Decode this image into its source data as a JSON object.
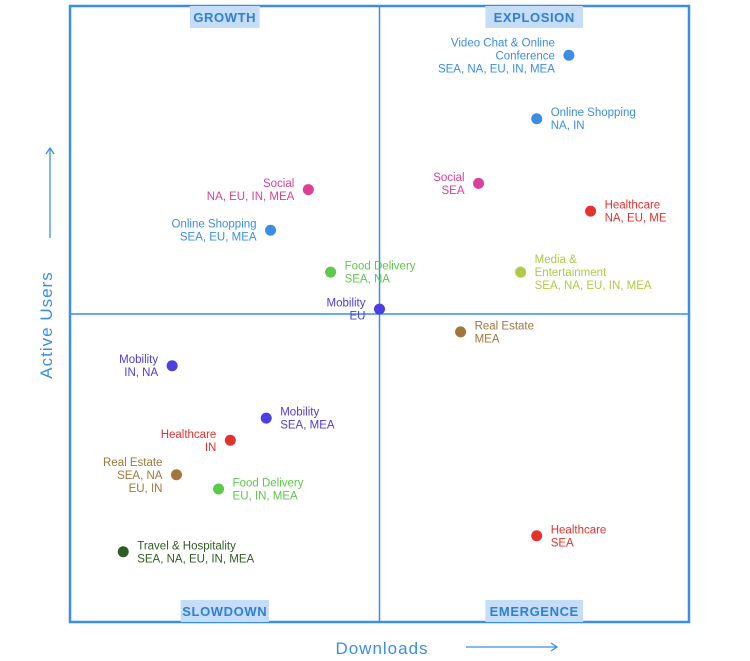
{
  "chart_data": {
    "type": "scatter",
    "title": "",
    "xlabel": "Downloads",
    "ylabel": "Active Users",
    "xlim": [
      0,
      100
    ],
    "ylim": [
      0,
      100
    ],
    "grid": false,
    "quadrants": {
      "top_left": "GROWTH",
      "top_right": "EXPLOSION",
      "bottom_left": "SLOWDOWN",
      "bottom_right": "EMERGENCE"
    },
    "categories": [
      {
        "name": "Video Chat & Online Conference",
        "color": "#3a8ee6"
      },
      {
        "name": "Online Shopping",
        "color": "#3a8ee6"
      },
      {
        "name": "Social",
        "color": "#dd3f96"
      },
      {
        "name": "Healthcare",
        "color": "#e5322e"
      },
      {
        "name": "Media & Entertainment",
        "color": "#aecb45"
      },
      {
        "name": "Food Delivery",
        "color": "#5dc84a"
      },
      {
        "name": "Mobility",
        "color": "#4c3ee0"
      },
      {
        "name": "Real Estate",
        "color": "#a2763b"
      },
      {
        "name": "Travel & Hospitality",
        "color": "#2f5e22"
      }
    ],
    "points": [
      {
        "id": "video-chat-explosion",
        "category": "Video Chat & Online Conference",
        "label_lines": [
          "Video Chat & Online",
          "Conference",
          "SEA, NA, EU, IN, MEA"
        ],
        "x": 80.6,
        "y": 92.0,
        "anchor": "end"
      },
      {
        "id": "online-shopping-explosion",
        "category": "Online Shopping",
        "label_lines": [
          "Online Shopping",
          "NA, IN"
        ],
        "x": 75.4,
        "y": 81.7,
        "anchor": "start"
      },
      {
        "id": "social-explosion",
        "category": "Social",
        "label_lines": [
          "Social",
          "SEA"
        ],
        "x": 66.0,
        "y": 71.2,
        "anchor": "end"
      },
      {
        "id": "healthcare-explosion",
        "category": "Healthcare",
        "label_lines": [
          "Healthcare",
          "NA, EU, ME"
        ],
        "x": 84.1,
        "y": 66.7,
        "anchor": "start"
      },
      {
        "id": "media-explosion",
        "category": "Media & Entertainment",
        "label_lines": [
          "Media &",
          "Entertainment",
          "SEA, NA, EU, IN, MEA"
        ],
        "x": 72.8,
        "y": 56.8,
        "anchor": "start"
      },
      {
        "id": "real-estate-explosion",
        "category": "Real Estate",
        "label_lines": [
          "Real Estate",
          "MEA"
        ],
        "x": 63.1,
        "y": 47.1,
        "anchor": "start"
      },
      {
        "id": "mobility-eu",
        "category": "Mobility",
        "label_lines": [
          "Mobility",
          "EU"
        ],
        "x": 50.0,
        "y": 50.8,
        "anchor": "end"
      },
      {
        "id": "food-delivery-growth",
        "category": "Food Delivery",
        "label_lines": [
          "Food Delivery",
          "SEA, NA"
        ],
        "x": 42.1,
        "y": 56.8,
        "anchor": "start"
      },
      {
        "id": "social-growth",
        "category": "Social",
        "label_lines": [
          "Social",
          "NA, EU, IN, MEA"
        ],
        "x": 38.5,
        "y": 70.2,
        "anchor": "end"
      },
      {
        "id": "online-shopping-growth",
        "category": "Online Shopping",
        "label_lines": [
          "Online Shopping",
          "SEA, EU, MEA"
        ],
        "x": 32.4,
        "y": 63.6,
        "anchor": "end"
      },
      {
        "id": "mobility-in-na",
        "category": "Mobility",
        "label_lines": [
          "Mobility",
          "IN, NA"
        ],
        "x": 16.5,
        "y": 41.6,
        "anchor": "end"
      },
      {
        "id": "mobility-sea-mea",
        "category": "Mobility",
        "label_lines": [
          "Mobility",
          "SEA, MEA"
        ],
        "x": 31.7,
        "y": 33.1,
        "anchor": "start"
      },
      {
        "id": "healthcare-in",
        "category": "Healthcare",
        "label_lines": [
          "Healthcare",
          "IN"
        ],
        "x": 25.9,
        "y": 29.5,
        "anchor": "end"
      },
      {
        "id": "real-estate-slowdown",
        "category": "Real Estate",
        "label_lines": [
          "Real Estate",
          "SEA, NA",
          "EU, IN"
        ],
        "x": 17.2,
        "y": 23.9,
        "anchor": "end"
      },
      {
        "id": "food-delivery-slowdown",
        "category": "Food Delivery",
        "label_lines": [
          "Food Delivery",
          "EU, IN, MEA"
        ],
        "x": 24.0,
        "y": 21.6,
        "anchor": "start"
      },
      {
        "id": "travel-hospitality",
        "category": "Travel & Hospitality",
        "label_lines": [
          "Travel & Hospitality",
          "SEA, NA, EU, IN, MEA"
        ],
        "x": 8.6,
        "y": 11.4,
        "anchor": "start"
      },
      {
        "id": "healthcare-sea",
        "category": "Healthcare",
        "label_lines": [
          "Healthcare",
          "SEA"
        ],
        "x": 75.4,
        "y": 14.0,
        "anchor": "start"
      }
    ]
  }
}
